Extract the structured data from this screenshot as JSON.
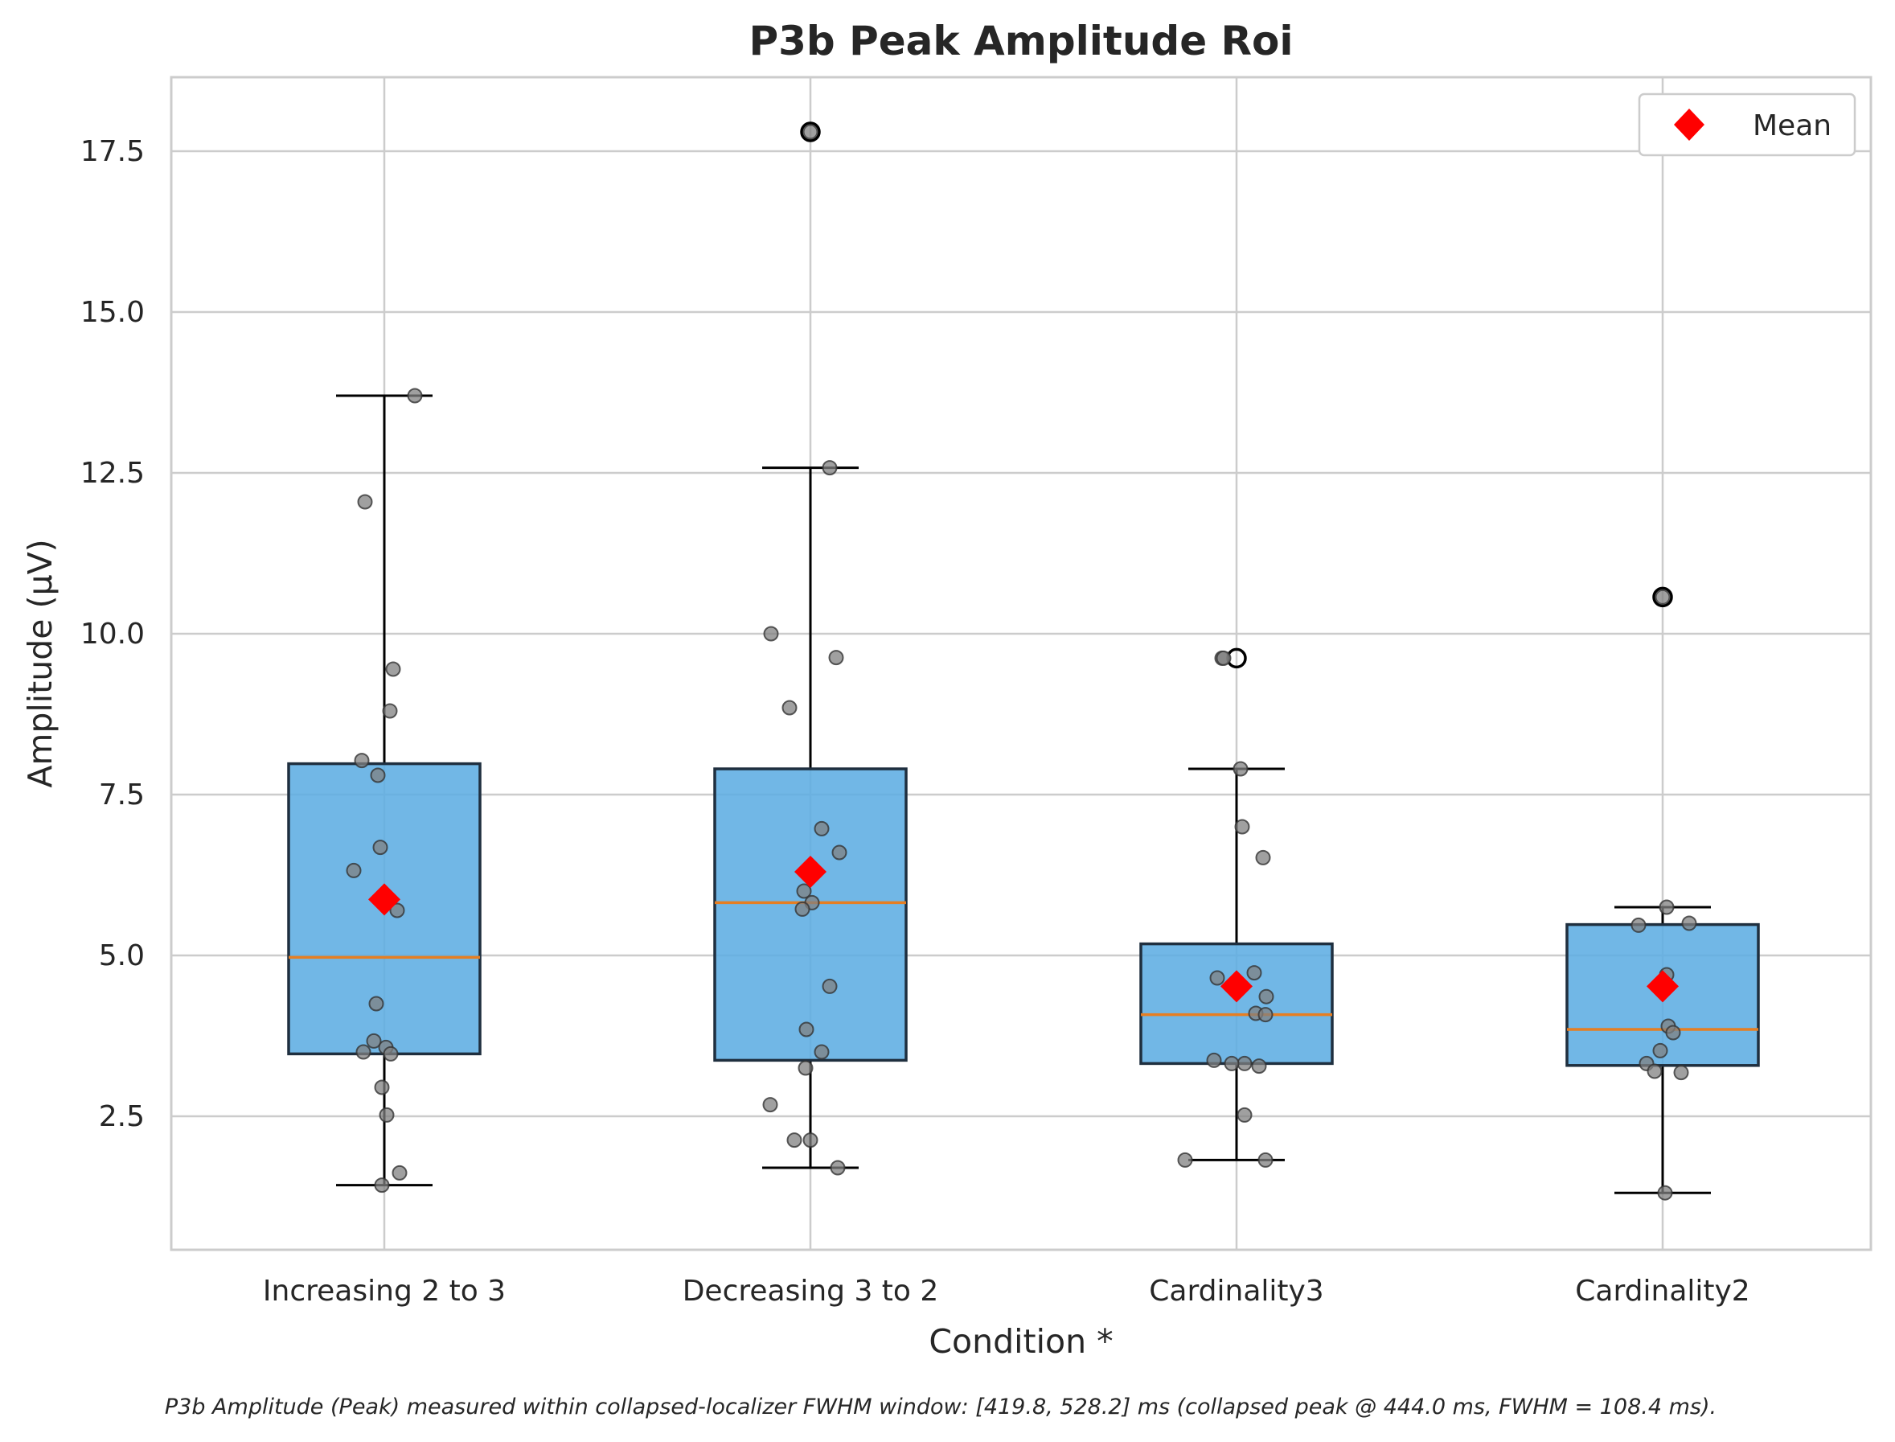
{
  "chart_data": {
    "type": "box",
    "title": "P3b Peak Amplitude Roi",
    "xlabel": "Condition *",
    "ylabel": "Amplitude (µV)",
    "ylim": [
      0.5,
      18.7
    ],
    "yticks": [
      2.5,
      5.0,
      7.5,
      10.0,
      12.5,
      15.0,
      17.5
    ],
    "ytick_labels": [
      "2.5",
      "5.0",
      "7.5",
      "10.0",
      "12.5",
      "15.0",
      "17.5"
    ],
    "grid": true,
    "legend": {
      "position": "upper right",
      "entries": [
        {
          "label": "Mean",
          "marker": "diamond",
          "color": "#ff0000"
        }
      ]
    },
    "box_color": "#5dade2",
    "median_color": "#e67e22",
    "point_color": "#808080",
    "mean_color": "#ff0000",
    "categories": [
      "Increasing 2 to 3",
      "Decreasing 3 to 2",
      "Cardinality3",
      "Cardinality2"
    ],
    "boxes": [
      {
        "q1": 3.47,
        "median": 4.97,
        "q3": 7.98,
        "whisker_low": 1.43,
        "whisker_high": 13.7,
        "mean": 5.87,
        "outliers": []
      },
      {
        "q1": 3.37,
        "median": 5.82,
        "q3": 7.9,
        "whisker_low": 1.7,
        "whisker_high": 12.58,
        "mean": 6.3,
        "outliers": [
          17.8
        ]
      },
      {
        "q1": 3.32,
        "median": 4.08,
        "q3": 5.18,
        "whisker_low": 1.82,
        "whisker_high": 7.9,
        "mean": 4.52,
        "outliers": [
          9.62
        ]
      },
      {
        "q1": 3.29,
        "median": 3.85,
        "q3": 5.48,
        "whisker_low": 1.31,
        "whisker_high": 5.75,
        "mean": 4.52,
        "outliers": [
          10.57
        ]
      }
    ],
    "points": [
      [
        13.7,
        12.05,
        9.45,
        8.8,
        8.03,
        7.8,
        6.68,
        6.32,
        5.7,
        4.25,
        3.67,
        3.57,
        3.5,
        3.47,
        2.95,
        2.52,
        1.62,
        1.43
      ],
      [
        17.8,
        12.58,
        10.0,
        9.63,
        8.85,
        6.97,
        6.6,
        6.0,
        5.82,
        5.72,
        4.52,
        3.85,
        3.5,
        3.25,
        2.68,
        2.13,
        2.13,
        1.7
      ],
      [
        9.62,
        9.62,
        7.9,
        7.0,
        6.52,
        4.73,
        4.65,
        4.36,
        4.1,
        4.08,
        3.37,
        3.32,
        3.32,
        3.28,
        2.52,
        1.82,
        1.82
      ],
      [
        10.57,
        5.75,
        5.5,
        5.47,
        4.7,
        3.9,
        3.8,
        3.52,
        3.32,
        3.2,
        3.18,
        1.31
      ]
    ]
  },
  "footnote": "P3b Amplitude (Peak) measured within collapsed-localizer FWHM window: [419.8, 528.2] ms (collapsed peak @ 444.0 ms, FWHM = 108.4 ms)."
}
